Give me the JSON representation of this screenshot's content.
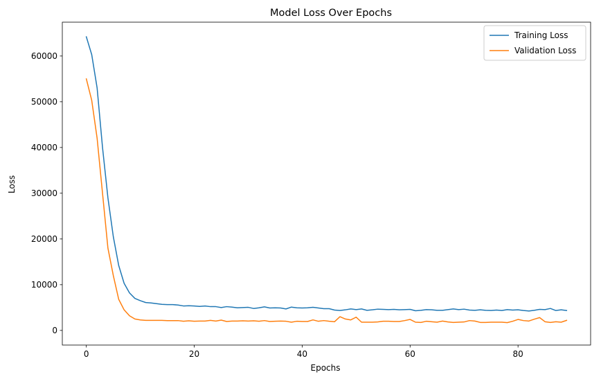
{
  "chart_data": {
    "type": "line",
    "title": "Model Loss Over Epochs",
    "xlabel": "Epochs",
    "ylabel": "Loss",
    "xlim": [
      -4.45,
      93.45
    ],
    "ylim": [
      -3200,
      67400
    ],
    "xticks": [
      0,
      20,
      40,
      60,
      80
    ],
    "yticks": [
      0,
      10000,
      20000,
      30000,
      40000,
      50000,
      60000
    ],
    "grid": false,
    "legend_position": "top-right",
    "series": [
      {
        "name": "Training Loss",
        "color": "#1f77b4",
        "values": [
          64200,
          60300,
          53000,
          40000,
          29000,
          20500,
          14200,
          10300,
          8200,
          7000,
          6500,
          6100,
          6000,
          5850,
          5700,
          5650,
          5650,
          5550,
          5350,
          5400,
          5350,
          5250,
          5350,
          5200,
          5200,
          5000,
          5200,
          5100,
          4950,
          5000,
          5050,
          4800,
          4950,
          5150,
          4900,
          4950,
          4900,
          4700,
          5100,
          4950,
          4900,
          4950,
          5050,
          4900,
          4750,
          4750,
          4450,
          4350,
          4500,
          4700,
          4550,
          4700,
          4400,
          4500,
          4650,
          4600,
          4550,
          4600,
          4500,
          4550,
          4600,
          4300,
          4400,
          4550,
          4500,
          4400,
          4400,
          4550,
          4700,
          4550,
          4650,
          4450,
          4400,
          4500,
          4400,
          4350,
          4450,
          4350,
          4550,
          4450,
          4500,
          4350,
          4250,
          4400,
          4600,
          4550,
          4800,
          4350,
          4500,
          4350
        ]
      },
      {
        "name": "Validation Loss",
        "color": "#ff7f0e",
        "values": [
          55000,
          50300,
          42000,
          30000,
          18000,
          12000,
          6800,
          4500,
          3200,
          2500,
          2300,
          2200,
          2200,
          2200,
          2200,
          2150,
          2150,
          2150,
          2000,
          2100,
          2000,
          2050,
          2050,
          2200,
          2050,
          2250,
          1950,
          2050,
          2050,
          2100,
          2050,
          2100,
          2000,
          2150,
          1950,
          2000,
          2050,
          2000,
          1800,
          2000,
          1950,
          1950,
          2300,
          2000,
          2150,
          2000,
          1900,
          3000,
          2500,
          2300,
          2900,
          1800,
          1800,
          1800,
          1850,
          2000,
          2000,
          1950,
          1950,
          2150,
          2400,
          1800,
          1750,
          2000,
          1900,
          1800,
          2050,
          1850,
          1750,
          1800,
          1850,
          2150,
          2050,
          1750,
          1750,
          1800,
          1800,
          1800,
          1700,
          2000,
          2400,
          2150,
          2050,
          2450,
          2800,
          1900,
          1750,
          1900,
          1800,
          2200
        ]
      }
    ]
  }
}
